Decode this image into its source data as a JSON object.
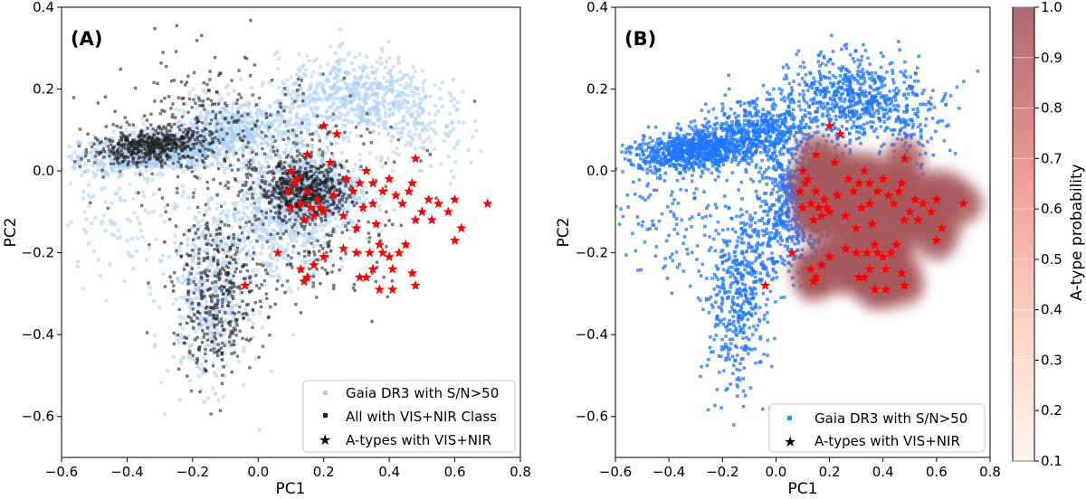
{
  "colors": {
    "gaia": "#1f77ff",
    "gaia_light": "#a9cdf5",
    "class_points": "#222222",
    "atype": "#ff0000",
    "prob_dark": "#a8585c"
  },
  "chart_data": [
    {
      "panel": "A",
      "type": "scatter",
      "panel_label": "(A)",
      "xlabel": "PC1",
      "ylabel": "PC2",
      "xlim": [
        -0.6,
        0.8
      ],
      "ylim": [
        -0.7,
        0.4
      ],
      "xticks": [
        "−0.6",
        "−0.4",
        "−0.2",
        "0.0",
        "0.2",
        "0.4",
        "0.6",
        "0.8"
      ],
      "yticks": [
        "0.4",
        "0.2",
        "0.0",
        "−0.2",
        "−0.4",
        "−0.6"
      ],
      "legend_position": "bottom-right",
      "series": [
        {
          "name": "Gaia DR3 with S/N>50",
          "marker": "square",
          "color": "#a9cdf5",
          "note": "dense cloud of several thousand points"
        },
        {
          "name": "All with VIS+NIR Class",
          "marker": "square",
          "color": "#222222",
          "note": "several thousand points concentrated in clumps"
        },
        {
          "name": "A-types with VIS+NIR",
          "marker": "star",
          "color": "#ff0000"
        }
      ],
      "atype_points": [
        [
          0.09,
          -0.05
        ],
        [
          0.12,
          -0.02
        ],
        [
          0.1,
          0.0
        ],
        [
          0.15,
          0.04
        ],
        [
          0.15,
          -0.05
        ],
        [
          0.18,
          -0.07
        ],
        [
          0.19,
          -0.09
        ],
        [
          0.2,
          -0.1
        ],
        [
          0.14,
          -0.12
        ],
        [
          0.17,
          -0.11
        ],
        [
          0.22,
          0.02
        ],
        [
          0.24,
          0.09
        ],
        [
          0.23,
          -0.06
        ],
        [
          0.27,
          -0.02
        ],
        [
          0.26,
          -0.11
        ],
        [
          0.3,
          -0.14
        ],
        [
          0.33,
          0.0
        ],
        [
          0.35,
          -0.03
        ],
        [
          0.35,
          -0.08
        ],
        [
          0.38,
          -0.05
        ],
        [
          0.32,
          -0.09
        ],
        [
          0.36,
          -0.13
        ],
        [
          0.37,
          -0.18
        ],
        [
          0.4,
          -0.02
        ],
        [
          0.42,
          -0.06
        ],
        [
          0.44,
          -0.08
        ],
        [
          0.46,
          -0.05
        ],
        [
          0.47,
          -0.03
        ],
        [
          0.48,
          0.03
        ],
        [
          0.5,
          -0.1
        ],
        [
          0.52,
          -0.07
        ],
        [
          0.55,
          -0.08
        ],
        [
          0.6,
          -0.07
        ],
        [
          0.62,
          -0.14
        ],
        [
          0.6,
          -0.17
        ],
        [
          0.58,
          -0.1
        ],
        [
          0.53,
          -0.12
        ],
        [
          0.48,
          -0.12
        ],
        [
          0.45,
          -0.18
        ],
        [
          0.43,
          -0.2
        ],
        [
          0.4,
          -0.21
        ],
        [
          0.38,
          -0.2
        ],
        [
          0.34,
          -0.2
        ],
        [
          0.3,
          -0.2
        ],
        [
          0.26,
          -0.19
        ],
        [
          0.35,
          -0.24
        ],
        [
          0.31,
          -0.26
        ],
        [
          0.41,
          -0.24
        ],
        [
          0.47,
          -0.25
        ],
        [
          0.41,
          -0.29
        ],
        [
          0.37,
          -0.29
        ],
        [
          0.33,
          -0.26
        ],
        [
          0.2,
          -0.21
        ],
        [
          0.17,
          -0.23
        ],
        [
          0.13,
          -0.24
        ],
        [
          0.15,
          -0.26
        ],
        [
          0.14,
          -0.27
        ],
        [
          0.06,
          -0.2
        ],
        [
          0.1,
          -0.09
        ],
        [
          0.13,
          -0.08
        ],
        [
          0.16,
          -0.09
        ],
        [
          0.7,
          -0.08
        ],
        [
          0.48,
          -0.28
        ],
        [
          0.2,
          0.11
        ],
        [
          0.31,
          -0.03
        ],
        [
          0.29,
          -0.05
        ],
        [
          0.11,
          -0.03
        ],
        [
          -0.04,
          -0.28
        ]
      ]
    },
    {
      "panel": "B",
      "type": "scatter",
      "panel_label": "(B)",
      "xlabel": "PC1",
      "ylabel": "PC2",
      "xlim": [
        -0.6,
        0.8
      ],
      "ylim": [
        -0.7,
        0.4
      ],
      "xticks": [
        "−0.6",
        "−0.4",
        "−0.2",
        "0.0",
        "0.2",
        "0.4",
        "0.6",
        "0.8"
      ],
      "yticks": [
        "0.4",
        "0.2",
        "0.0",
        "−0.2",
        "−0.4",
        "−0.6"
      ],
      "legend_position": "bottom-right",
      "series": [
        {
          "name": "Gaia DR3 with S/N>50",
          "marker": "square",
          "color": "#3f8fe8",
          "note": "dense cloud of several thousand points"
        },
        {
          "name": "A-types with VIS+NIR",
          "marker": "star",
          "color": "#ff0000"
        }
      ],
      "probability_overlay": {
        "label": "A-type probability",
        "range": [
          0.1,
          1.0
        ],
        "regions": [
          {
            "center": [
              0.6,
              -0.05
            ],
            "value": 1.0
          },
          {
            "center": [
              0.5,
              -0.1
            ],
            "value": 1.0
          },
          {
            "center": [
              0.35,
              -0.2
            ],
            "value": 1.0
          },
          {
            "center": [
              0.2,
              -0.25
            ],
            "value": 1.0
          }
        ]
      },
      "colorbar": {
        "label": "A-type probability",
        "ticks": [
          "1.0",
          "0.9",
          "0.8",
          "0.7",
          "0.6",
          "0.5",
          "0.4",
          "0.3",
          "0.2",
          "0.1"
        ]
      }
    }
  ]
}
